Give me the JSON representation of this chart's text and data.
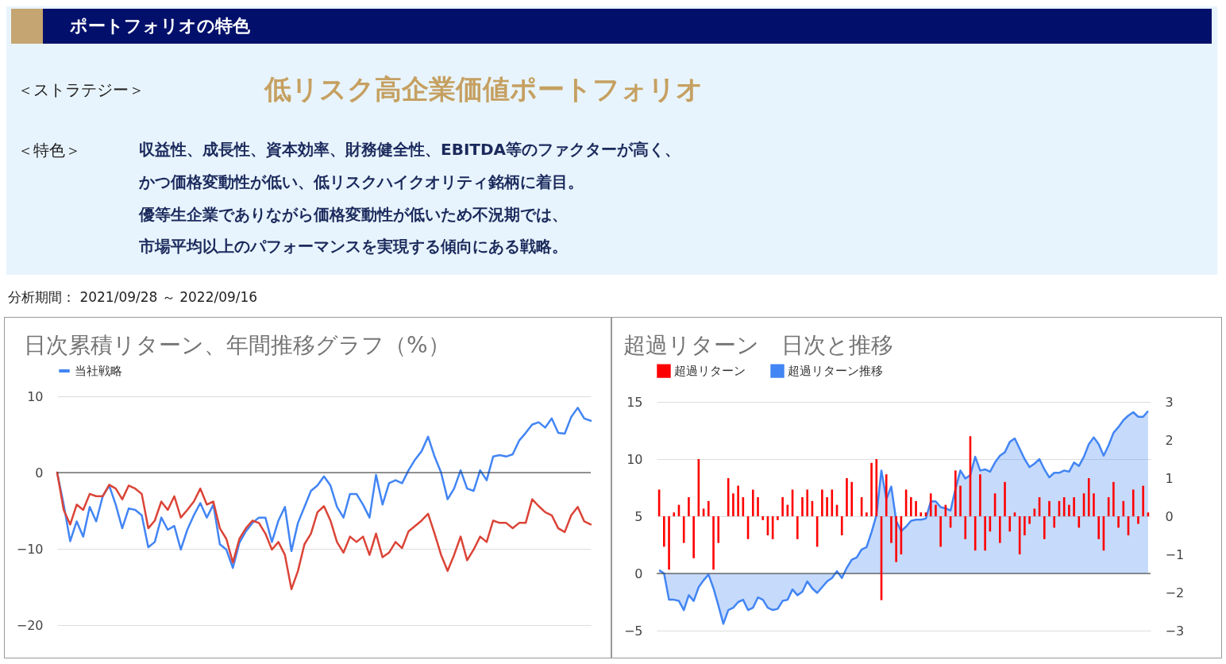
{
  "chart_data": [
    {
      "type": "other",
      "title": "ポートフォリオの特色",
      "subtitle": "低リスク高企業価値ポートフォリオ",
      "annotations": [
        "＜ストラテジー＞",
        "＜特色＞",
        "収益性、成長性、資本効率、財務健全性、EBITDA等のファクターが高く、",
        "かつ価格変動性が低い、低リスクハイクオリティ銘柄に着目。",
        "優等生企業でありながら価格変動性が低いため不況期では、",
        "市場平均以上のパフォーマンスを実現する傾向にある戦略。",
        "分析期間： 2021/09/28 ～ 2022/09/16"
      ]
    },
    {
      "type": "line",
      "title": "日次累積リターン、年間推移グラフ（%）",
      "categories": [
        null,
        null,
        null,
        null,
        null,
        null,
        null,
        null,
        null,
        null,
        null,
        null,
        null,
        null,
        null,
        null,
        null,
        null,
        null,
        null,
        null,
        null,
        null,
        null,
        null,
        null,
        null,
        null,
        null,
        null,
        null,
        null,
        null,
        null,
        null,
        null,
        null,
        null,
        null,
        null,
        null,
        null,
        null,
        null,
        null,
        null,
        null,
        null,
        null,
        null,
        null,
        null,
        null,
        null,
        null,
        null,
        null,
        null,
        null,
        null,
        null,
        null,
        null,
        null,
        null,
        null,
        null,
        null,
        null,
        null,
        null,
        null,
        null,
        null,
        null,
        null,
        null,
        null,
        null,
        null,
        null,
        null,
        null
      ],
      "series": [
        {
          "name": "当社戦略",
          "color": "#4285f4",
          "values": [
            0,
            -4.2,
            -9.0,
            -6.4,
            -8.4,
            -4.5,
            -6.4,
            -3.1,
            -1.7,
            -4.2,
            -7.3,
            -4.7,
            -4.9,
            -5.6,
            -9.8,
            -9.1,
            -5.9,
            -7.5,
            -7.0,
            -10.1,
            -7.5,
            -5.6,
            -4.0,
            -5.9,
            -4.2,
            -9.4,
            -10.1,
            -12.5,
            -9.2,
            -7.7,
            -6.6,
            -5.9,
            -5.9,
            -9.1,
            -6.3,
            -4.5,
            -10.3,
            -6.6,
            -4.5,
            -2.4,
            -1.7,
            -0.5,
            -1.7,
            -4.5,
            -5.9,
            -2.8,
            -2.8,
            -4.2,
            -5.9,
            -0.3,
            -4.2,
            -1.4,
            -1.0,
            -1.4,
            0.3,
            1.7,
            2.8,
            4.7,
            2.1,
            0,
            -3.5,
            -2.1,
            0.3,
            -2.1,
            -2.4,
            0.3,
            -1.0,
            2.1,
            2.3,
            2.1,
            2.4,
            4.2,
            5.2,
            6.3,
            6.6,
            5.9,
            7.1,
            5.2,
            5.1,
            7.3,
            8.5,
            7.1,
            6.8
          ]
        },
        {
          "color": "#db4437",
          "values": [
            0,
            -4.9,
            -6.8,
            -4.2,
            -4.9,
            -2.8,
            -3.1,
            -3.1,
            -1.6,
            -2.1,
            -3.5,
            -1.7,
            -2.1,
            -2.8,
            -7.3,
            -6.3,
            -3.8,
            -4.9,
            -3.1,
            -5.9,
            -4.9,
            -3.8,
            -2.1,
            -4.2,
            -3.8,
            -7.3,
            -8.7,
            -11.8,
            -8.7,
            -7.3,
            -6.3,
            -6.6,
            -8.0,
            -10.1,
            -9.1,
            -10.8,
            -15.3,
            -12.9,
            -9.4,
            -8.0,
            -5.2,
            -4.4,
            -6.3,
            -9.1,
            -10.5,
            -8.4,
            -9.1,
            -8.4,
            -10.8,
            -8.0,
            -11.1,
            -10.5,
            -9.1,
            -9.9,
            -7.7,
            -7.0,
            -6.3,
            -5.4,
            -8.0,
            -10.8,
            -12.9,
            -10.8,
            -8.4,
            -11.5,
            -10.1,
            -8.4,
            -9.1,
            -6.3,
            -6.6,
            -6.6,
            -7.3,
            -6.6,
            -6.6,
            -3.5,
            -4.4,
            -5.2,
            -5.6,
            -7.3,
            -7.8,
            -5.6,
            -4.5,
            -6.4,
            -6.8
          ]
        }
      ],
      "ylim": [
        -20,
        10
      ],
      "yticks": [
        -20,
        -10,
        0,
        10
      ],
      "grid": "y",
      "legend": "top",
      "ref_lines": [
        {
          "axis": "y",
          "value": 0,
          "color": "#333333"
        }
      ]
    },
    {
      "type": "bar",
      "title": "超過リターン　日次と推移",
      "categories": [
        null,
        null,
        null,
        null,
        null,
        null,
        null,
        null,
        null,
        null,
        null,
        null,
        null,
        null,
        null,
        null,
        null,
        null,
        null,
        null,
        null,
        null,
        null,
        null,
        null,
        null,
        null,
        null,
        null,
        null,
        null,
        null,
        null,
        null,
        null,
        null,
        null,
        null,
        null,
        null,
        null,
        null,
        null,
        null,
        null,
        null,
        null,
        null,
        null,
        null,
        null,
        null,
        null,
        null,
        null,
        null,
        null,
        null,
        null,
        null,
        null,
        null,
        null,
        null,
        null,
        null,
        null,
        null,
        null,
        null,
        null,
        null,
        null,
        null,
        null,
        null,
        null,
        null,
        null,
        null,
        null,
        null,
        null,
        null,
        null,
        null,
        null,
        null,
        null,
        null,
        null,
        null,
        null,
        null,
        null,
        null,
        null,
        null,
        null,
        null
      ],
      "series": [
        {
          "name": "超過リターン",
          "type": "bar",
          "axis": "y2",
          "color": "#ff0000",
          "values": [
            0.7,
            -0.8,
            -1.4,
            0.1,
            0.3,
            -0.7,
            0.5,
            -1.1,
            1.5,
            0.2,
            0.4,
            -1.4,
            -0.7,
            0,
            1.0,
            0.6,
            0.8,
            0.5,
            -0.6,
            0.7,
            0.5,
            -0.1,
            -0.5,
            -0.6,
            -0.1,
            0.5,
            0.3,
            0.7,
            -0.6,
            0.5,
            0.7,
            0.4,
            -0.8,
            0.7,
            0.5,
            0.7,
            0.3,
            -0.5,
            1.0,
            0.9,
            0,
            0.5,
            0.1,
            1.4,
            1.5,
            -2.2,
            1.1,
            -0.7,
            -1.2,
            -1.0,
            0.7,
            0.5,
            0.4,
            0.1,
            0.1,
            0.6,
            0.3,
            -0.8,
            0.3,
            -0.3,
            1.2,
            0.8,
            -0.6,
            2.1,
            -0.9,
            1.1,
            -0.9,
            -0.4,
            0.6,
            -0.7,
            0.9,
            -0.4,
            0.1,
            -1.0,
            -0.5,
            -0.2,
            0.2,
            0.5,
            -0.6,
            0.4,
            -0.3,
            0.4,
            0.5,
            0.3,
            0.5,
            -0.3,
            0.6,
            1.0,
            0.6,
            -0.6,
            -0.9,
            0.5,
            0.9,
            -0.3,
            0.4,
            -0.5,
            0.7,
            -0.2,
            0.8,
            0.1
          ]
        },
        {
          "name": "超過リターン推移",
          "type": "area",
          "color": "#4285f4",
          "values": [
            0.3,
            0,
            -2.3,
            -2.3,
            -2.4,
            -3.2,
            -1.9,
            -2.4,
            -1.2,
            -0.6,
            -0.1,
            -1.3,
            -2.8,
            -4.4,
            -3.2,
            -3.0,
            -2.5,
            -2.3,
            -3.2,
            -3.0,
            -2.1,
            -2.3,
            -3.0,
            -3.2,
            -3.1,
            -2.4,
            -2.3,
            -1.4,
            -1.9,
            -1.6,
            -0.7,
            -1.3,
            -1.7,
            -1.2,
            -0.7,
            -0.4,
            0.2,
            -0.4,
            0.5,
            1.2,
            1.4,
            2.1,
            2.3,
            3.6,
            5.1,
            9.0,
            6.5,
            7.6,
            4.6,
            3.7,
            4.1,
            4.6,
            4.7,
            4.7,
            4.8,
            6.3,
            6.3,
            5.8,
            5.7,
            5.5,
            7.4,
            9.0,
            8.3,
            8.6,
            10.2,
            9.0,
            9.1,
            8.9,
            9.7,
            10.3,
            10.6,
            11.5,
            11.8,
            10.9,
            10.0,
            9.3,
            9.6,
            10.0,
            9.1,
            8.4,
            8.8,
            8.8,
            9.0,
            8.9,
            9.7,
            9.4,
            10.2,
            11.3,
            11.9,
            11.3,
            10.3,
            11.2,
            12.3,
            12.8,
            13.4,
            13.8,
            14.1,
            13.7,
            13.7,
            14.2
          ]
        }
      ],
      "ylim": [
        -5,
        15
      ],
      "yticks": [
        -5,
        0,
        5,
        10,
        15
      ],
      "y2lim": [
        -3,
        3
      ],
      "y2ticks": [
        -3,
        -2,
        -1,
        0,
        1,
        2,
        3
      ],
      "grid": "y",
      "legend": "top",
      "ref_lines": [
        {
          "axis": "y",
          "value": 0,
          "color": "#333333"
        }
      ]
    }
  ]
}
